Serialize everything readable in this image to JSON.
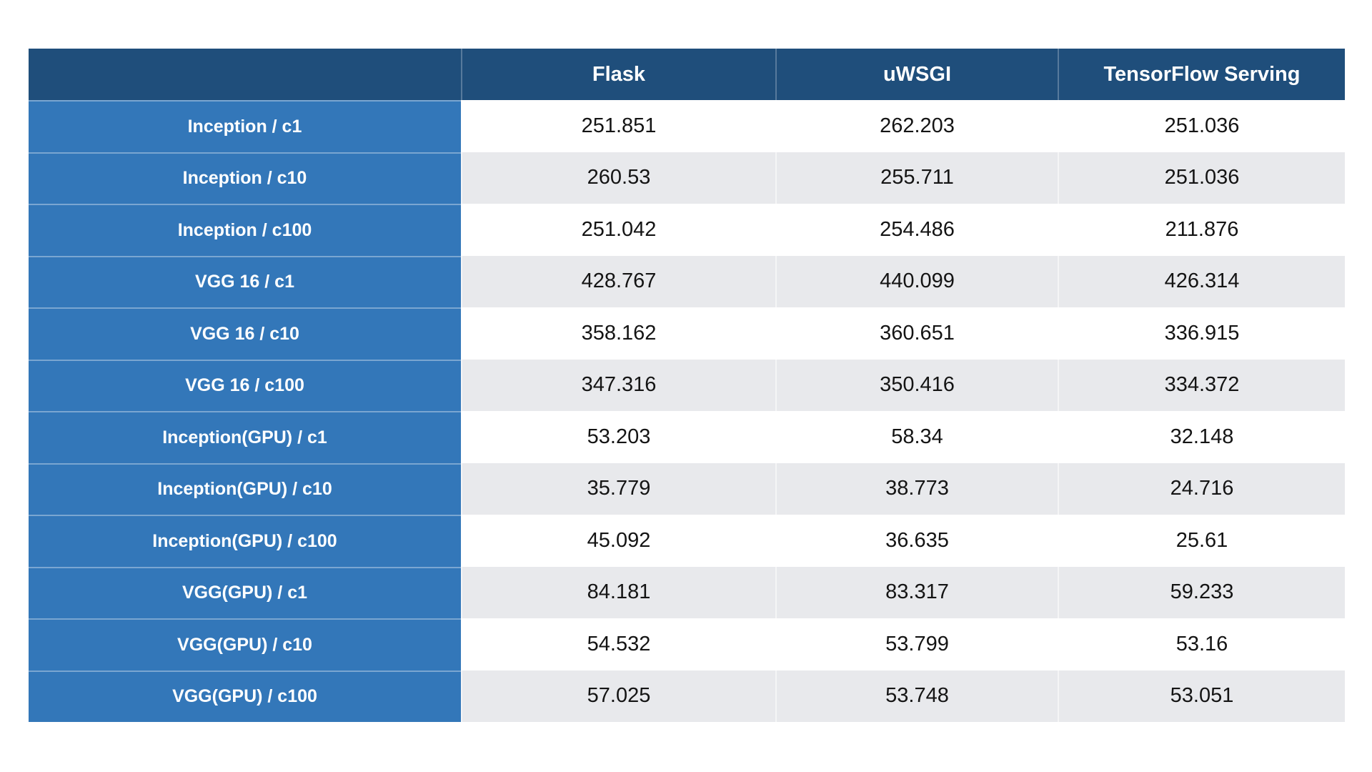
{
  "table": {
    "columns": [
      "",
      "Flask",
      "uWSGI",
      "TensorFlow Serving"
    ],
    "rows": [
      {
        "label": "Inception / c1",
        "values": [
          "251.851",
          "262.203",
          "251.036"
        ]
      },
      {
        "label": "Inception / c10",
        "values": [
          "260.53",
          "255.711",
          "251.036"
        ]
      },
      {
        "label": "Inception / c100",
        "values": [
          "251.042",
          "254.486",
          "211.876"
        ]
      },
      {
        "label": "VGG 16 / c1",
        "values": [
          "428.767",
          "440.099",
          "426.314"
        ]
      },
      {
        "label": "VGG 16 / c10",
        "values": [
          "358.162",
          "360.651",
          "336.915"
        ]
      },
      {
        "label": "VGG 16 / c100",
        "values": [
          "347.316",
          "350.416",
          "334.372"
        ]
      },
      {
        "label": "Inception(GPU) / c1",
        "values": [
          "53.203",
          "58.34",
          "32.148"
        ]
      },
      {
        "label": "Inception(GPU) / c10",
        "values": [
          "35.779",
          "38.773",
          "24.716"
        ]
      },
      {
        "label": "Inception(GPU) / c100",
        "values": [
          "45.092",
          "36.635",
          "25.61"
        ]
      },
      {
        "label": "VGG(GPU) / c1",
        "values": [
          "84.181",
          "83.317",
          "59.233"
        ]
      },
      {
        "label": "VGG(GPU) / c10",
        "values": [
          "54.532",
          "53.799",
          "53.16"
        ]
      },
      {
        "label": "VGG(GPU) / c100",
        "values": [
          "57.025",
          "53.748",
          "53.051"
        ]
      }
    ]
  },
  "colors": {
    "header_bg": "#1F4E7B",
    "row_header_bg": "#3377B9",
    "stripe_bg": "#E8E9EC",
    "row_bg": "#FFFFFF",
    "header_text": "#FFFFFF",
    "data_text": "#141414"
  },
  "chart_data": {
    "type": "table",
    "title": "",
    "categories": [
      "Inception / c1",
      "Inception / c10",
      "Inception / c100",
      "VGG 16 / c1",
      "VGG 16 / c10",
      "VGG 16 / c100",
      "Inception(GPU) / c1",
      "Inception(GPU) / c10",
      "Inception(GPU) / c100",
      "VGG(GPU) / c1",
      "VGG(GPU) / c10",
      "VGG(GPU) / c100"
    ],
    "series": [
      {
        "name": "Flask",
        "values": [
          251.851,
          260.53,
          251.042,
          428.767,
          358.162,
          347.316,
          53.203,
          35.779,
          45.092,
          84.181,
          54.532,
          57.025
        ]
      },
      {
        "name": "uWSGI",
        "values": [
          262.203,
          255.711,
          254.486,
          440.099,
          360.651,
          350.416,
          58.34,
          38.773,
          36.635,
          83.317,
          53.799,
          53.748
        ]
      },
      {
        "name": "TensorFlow Serving",
        "values": [
          251.036,
          251.036,
          211.876,
          426.314,
          336.915,
          334.372,
          32.148,
          24.716,
          25.61,
          59.233,
          53.16,
          53.051
        ]
      }
    ]
  }
}
